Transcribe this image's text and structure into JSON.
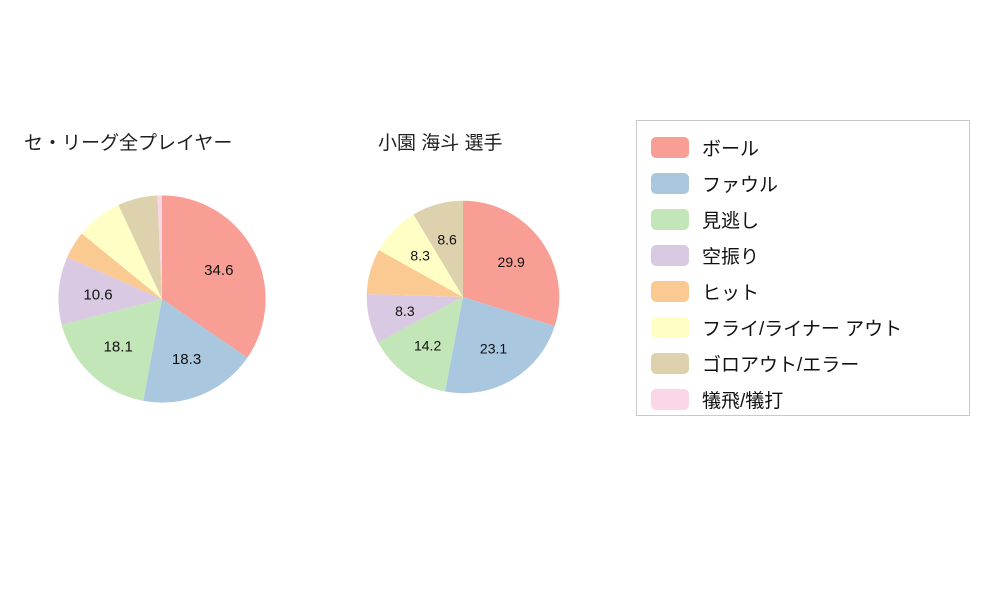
{
  "background_color": "#ffffff",
  "palette": {
    "ボール": "#f89e94",
    "ファウル": "#aac7e0",
    "見逃し": "#c3e6b8",
    "空振り": "#d9c9e3",
    "ヒット": "#fbca92",
    "フライ/ライナー アウト": "#ffffc5",
    "ゴロアウト/エラー": "#ddd1ae",
    "犠飛/犠打": "#fbd6e8"
  },
  "legend": {
    "items": [
      {
        "label": "ボール"
      },
      {
        "label": "ファウル"
      },
      {
        "label": "見逃し"
      },
      {
        "label": "空振り"
      },
      {
        "label": "ヒット"
      },
      {
        "label": "フライ/ライナー アウト"
      },
      {
        "label": "ゴロアウト/エラー"
      },
      {
        "label": "犠飛/犠打"
      }
    ]
  },
  "chart_data": [
    {
      "type": "pie",
      "title": "セ・リーグ全プレイヤー",
      "direction": "clockwise",
      "start_angle": "top",
      "slices": [
        {
          "name": "ボール",
          "value": 34.6,
          "label": "34.6"
        },
        {
          "name": "ファウル",
          "value": 18.3,
          "label": "18.3"
        },
        {
          "name": "見逃し",
          "value": 18.1,
          "label": "18.1"
        },
        {
          "name": "空振り",
          "value": 10.6,
          "label": "10.6"
        },
        {
          "name": "ヒット",
          "value": 4.3,
          "label": ""
        },
        {
          "name": "フライ/ライナー アウト",
          "value": 7.2,
          "label": ""
        },
        {
          "name": "ゴロアウト/エラー",
          "value": 6.2,
          "label": ""
        },
        {
          "name": "犠飛/犠打",
          "value": 0.7,
          "label": ""
        }
      ]
    },
    {
      "type": "pie",
      "title": "小園 海斗 選手",
      "direction": "clockwise",
      "start_angle": "top",
      "slices": [
        {
          "name": "ボール",
          "value": 29.9,
          "label": "29.9"
        },
        {
          "name": "ファウル",
          "value": 23.1,
          "label": "23.1"
        },
        {
          "name": "見逃し",
          "value": 14.2,
          "label": "14.2"
        },
        {
          "name": "空振り",
          "value": 8.3,
          "label": "8.3"
        },
        {
          "name": "ヒット",
          "value": 7.6,
          "label": ""
        },
        {
          "name": "フライ/ライナー アウト",
          "value": 8.3,
          "label": "8.3"
        },
        {
          "name": "ゴロアウト/エラー",
          "value": 8.6,
          "label": "8.6"
        },
        {
          "name": "犠飛/犠打",
          "value": 0,
          "label": ""
        }
      ]
    }
  ]
}
